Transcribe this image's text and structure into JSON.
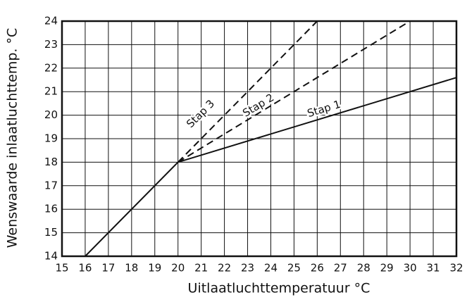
{
  "chart_data": {
    "type": "line",
    "xlabel": "Uitlaatluchttemperatuur °C",
    "ylabel": "Wenswaarde inlaatluchttemp.  °C",
    "xlim": [
      15,
      32
    ],
    "xticks": [
      15,
      16,
      17,
      18,
      19,
      20,
      21,
      22,
      23,
      24,
      25,
      26,
      27,
      28,
      29,
      30,
      31,
      32
    ],
    "ylim": [
      14,
      24
    ],
    "yticks": [
      14,
      15,
      16,
      17,
      18,
      19,
      20,
      21,
      22,
      23,
      24
    ],
    "grid": true,
    "series": [
      {
        "name": "Stap 1",
        "color": "#111111",
        "dash": false,
        "x": [
          16,
          20,
          32
        ],
        "values": [
          14,
          18,
          21.6
        ]
      },
      {
        "name": "Stap 2",
        "color": "#111111",
        "dash": true,
        "x": [
          20,
          30
        ],
        "values": [
          18,
          24
        ]
      },
      {
        "name": "Stap 3",
        "color": "#111111",
        "dash": true,
        "x": [
          20,
          26
        ],
        "values": [
          18,
          24
        ]
      }
    ]
  }
}
